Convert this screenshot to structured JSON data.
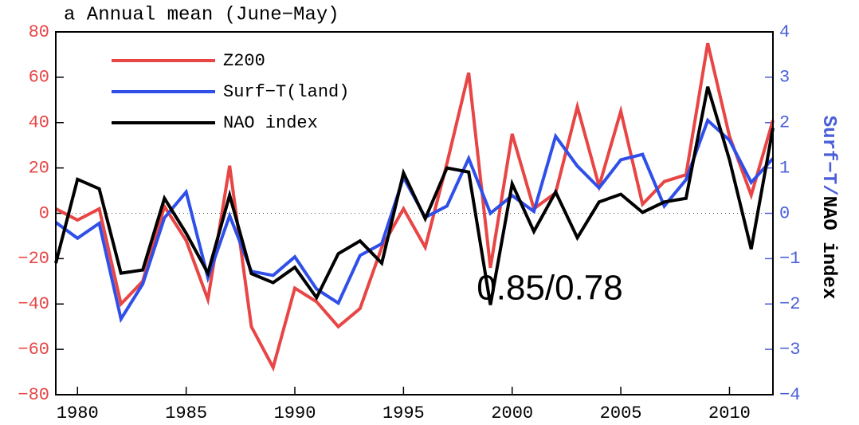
{
  "chart_data": {
    "type": "line",
    "title": "a Annual mean (June−May)",
    "y2label": [
      "Surf−T/",
      "NAO index"
    ],
    "annotation": "0.85/0.78",
    "x": [
      1979,
      1980,
      1981,
      1982,
      1983,
      1984,
      1985,
      1986,
      1987,
      1988,
      1989,
      1990,
      1991,
      1992,
      1993,
      1994,
      1995,
      1996,
      1997,
      1998,
      1999,
      2000,
      2001,
      2002,
      2003,
      2004,
      2005,
      2006,
      2007,
      2008,
      2009,
      2010,
      2011,
      2012
    ],
    "series": [
      {
        "name": "Z200",
        "color": "#e84545",
        "values": [
          2,
          -3,
          2,
          -40,
          -30,
          3,
          -12,
          -38,
          21,
          -50,
          -68,
          -33,
          -39,
          -50,
          -42,
          -15,
          2,
          -15,
          22,
          62,
          -24,
          35,
          2,
          9,
          47,
          12,
          45,
          4,
          14,
          17,
          75,
          34,
          8,
          41
        ]
      },
      {
        "name": "Surf−T(land)",
        "color": "#2f4fe8",
        "axis": "y2",
        "values": [
          -0.2,
          -0.55,
          -0.22,
          -2.33,
          -1.56,
          -0.1,
          0.47,
          -1.42,
          -0.05,
          -1.28,
          -1.37,
          -0.96,
          -1.67,
          -1.98,
          -0.93,
          -0.67,
          0.79,
          -0.09,
          0.16,
          1.21,
          0,
          0.39,
          0.04,
          1.7,
          1.04,
          0.56,
          1.18,
          1.3,
          0.16,
          0.74,
          2.05,
          1.61,
          0.68,
          1.21
        ]
      },
      {
        "name": "NAO index",
        "color": "#000000",
        "axis": "y2",
        "values": [
          -1.1,
          0.75,
          0.54,
          -1.32,
          -1.25,
          0.33,
          -0.44,
          -1.32,
          0.4,
          -1.33,
          -1.53,
          -1.19,
          -1.86,
          -0.89,
          -0.61,
          -1.1,
          0.89,
          -0.12,
          1.0,
          0.91,
          -2.02,
          0.65,
          -0.4,
          0.47,
          -0.54,
          0.25,
          0.42,
          0.02,
          0.25,
          0.33,
          2.79,
          1.18,
          -0.79,
          1.88
        ]
      }
    ],
    "xlim": [
      1979,
      2012
    ],
    "xticks": [
      1980,
      1985,
      1990,
      1995,
      2000,
      2005,
      2010
    ],
    "ylim": [
      -80,
      80
    ],
    "yticks": [
      {
        "value": -80,
        "label": "−80"
      },
      {
        "value": -60,
        "label": "−60"
      },
      {
        "value": -40,
        "label": "−40"
      },
      {
        "value": -20,
        "label": "−20"
      },
      0,
      20,
      40,
      60,
      80
    ],
    "y2lim": [
      -4,
      4
    ],
    "y2ticks": [
      {
        "value": -4,
        "label": "−4"
      },
      {
        "value": -3,
        "label": "−3"
      },
      {
        "value": -2,
        "label": "−2"
      },
      {
        "value": -1,
        "label": "−1"
      },
      0,
      1,
      2,
      3,
      4
    ],
    "ycolor": "#e84545",
    "y2color": "#4a5fd8",
    "legend": "upper left"
  }
}
